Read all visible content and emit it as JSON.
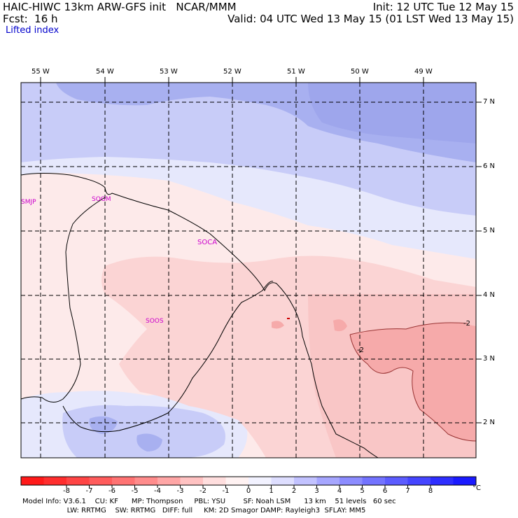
{
  "header": {
    "line1_left": "HAIC-HIWC 13km ARW-GFS init   NCAR/MMM",
    "line2_left": "Fcst:  16 h",
    "field_name": "Lifted index",
    "line1_right": "Init: 12 UTC Tue 12 May 15",
    "line2_right": "Valid: 04 UTC Wed 13 May 15 (01 LST Wed 13 May 15)"
  },
  "map": {
    "lon_labels": [
      "55 W",
      "54 W",
      "53 W",
      "52 W",
      "51 W",
      "50 W",
      "49 W"
    ],
    "lat_labels": [
      "7 N",
      "6 N",
      "5 N",
      "4 N",
      "3 N",
      "2 N"
    ],
    "stations": [
      "SMJP",
      "SOGM",
      "SOCA",
      "SOOS"
    ],
    "contour_labels": [
      "-2",
      "-2"
    ],
    "colors": {
      "strong_blue": "#a8b0f0",
      "mid_blue": "#c8ccf8",
      "light_blue": "#e6e8fc",
      "pale_red": "#fdeaea",
      "light_red": "#fbd4d4",
      "mid_red": "#f6aaaa",
      "coast": "#000000",
      "station": "#cc00cc",
      "contour": "#993333"
    }
  },
  "colorbar": {
    "colors": [
      "#ff1a1a",
      "#ff2e2e",
      "#ff4545",
      "#ff5c5c",
      "#ff7373",
      "#ff8c8c",
      "#ffa6a6",
      "#ffc2c2",
      "#ffdede",
      "#fff2f2",
      "#f2f2ff",
      "#dedeff",
      "#c2c2ff",
      "#a6a6ff",
      "#8c8cff",
      "#7373ff",
      "#5c5cff",
      "#4545ff",
      "#2e2eff",
      "#1a1aff"
    ],
    "tick_labels": [
      "-8",
      "-7",
      "-6",
      "-5",
      "-4",
      "-3",
      "-2",
      "-1",
      "0",
      "1",
      "2",
      "3",
      "4",
      "5",
      "6",
      "7",
      "8"
    ],
    "unit": "°C"
  },
  "footer": {
    "line1": "Model Info: V3.6.1    CU: KF      MP: Thompson     PBL: YSU        SF: Noah LSM      13 km    51 levels   60 sec",
    "line2": "                    LW: RRTMG    SW: RRTMG   DIFF: full     KM: 2D Smagor DAMP: Rayleigh3  SFLAY: MM5"
  }
}
